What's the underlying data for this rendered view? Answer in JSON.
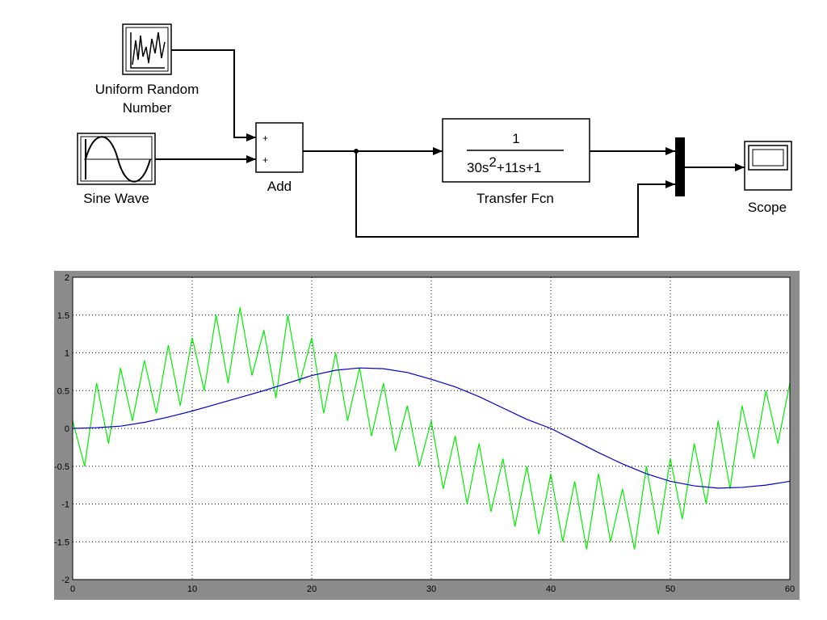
{
  "diagram": {
    "blocks": {
      "uniform_random": {
        "label_lines": [
          "Uniform Random",
          "Number"
        ]
      },
      "sine_wave": {
        "label": "Sine Wave"
      },
      "add": {
        "label": "Add",
        "signs": [
          "+",
          "+"
        ]
      },
      "transfer_fcn": {
        "label": "Transfer Fcn",
        "numerator": "1",
        "denominator": [
          "30s",
          "2",
          "+11s+1"
        ]
      },
      "scope": {
        "label": "Scope"
      }
    }
  },
  "chart_data": {
    "type": "line",
    "xlim": [
      0,
      60
    ],
    "ylim": [
      -2,
      2
    ],
    "xticks": [
      0,
      10,
      20,
      30,
      40,
      50,
      60
    ],
    "yticks": [
      -2,
      -1.5,
      -1,
      -0.5,
      0,
      0.5,
      1,
      1.5,
      2
    ],
    "grid": true,
    "series": [
      {
        "color": "#00ee00",
        "x": [
          0,
          1,
          2,
          3,
          4,
          5,
          6,
          7,
          8,
          9,
          10,
          11,
          12,
          13,
          14,
          15,
          16,
          17,
          18,
          19,
          20,
          21,
          22,
          23,
          24,
          25,
          26,
          27,
          28,
          29,
          30,
          31,
          32,
          33,
          34,
          35,
          36,
          37,
          38,
          39,
          40,
          41,
          42,
          43,
          44,
          45,
          46,
          47,
          48,
          49,
          50,
          51,
          52,
          53,
          54,
          55,
          56,
          57,
          58,
          59,
          60
        ],
        "values": [
          0.1,
          -0.5,
          0.6,
          -0.2,
          0.8,
          0.1,
          0.9,
          0.2,
          1.1,
          0.3,
          1.2,
          0.5,
          1.5,
          0.6,
          1.6,
          0.7,
          1.3,
          0.4,
          1.5,
          0.6,
          1.2,
          0.2,
          1.0,
          0.1,
          0.8,
          -0.1,
          0.6,
          -0.3,
          0.3,
          -0.5,
          0.1,
          -0.8,
          -0.1,
          -1.0,
          -0.2,
          -1.1,
          -0.4,
          -1.3,
          -0.5,
          -1.4,
          -0.6,
          -1.5,
          -0.7,
          -1.6,
          -0.6,
          -1.5,
          -0.8,
          -1.6,
          -0.5,
          -1.4,
          -0.4,
          -1.2,
          -0.2,
          -1.0,
          0.1,
          -0.8,
          0.3,
          -0.4,
          0.5,
          -0.2,
          0.6
        ]
      },
      {
        "color": "#0000cc",
        "x": [
          0,
          2,
          4,
          6,
          8,
          10,
          12,
          14,
          16,
          18,
          20,
          22,
          24,
          26,
          28,
          30,
          32,
          34,
          36,
          38,
          40,
          42,
          44,
          46,
          48,
          50,
          52,
          54,
          56,
          58,
          60
        ],
        "values": [
          0,
          0.01,
          0.03,
          0.08,
          0.15,
          0.23,
          0.32,
          0.41,
          0.5,
          0.6,
          0.7,
          0.77,
          0.8,
          0.79,
          0.74,
          0.65,
          0.55,
          0.42,
          0.27,
          0.12,
          0,
          -0.16,
          -0.32,
          -0.47,
          -0.6,
          -0.7,
          -0.76,
          -0.79,
          -0.78,
          -0.75,
          -0.7
        ]
      }
    ]
  }
}
